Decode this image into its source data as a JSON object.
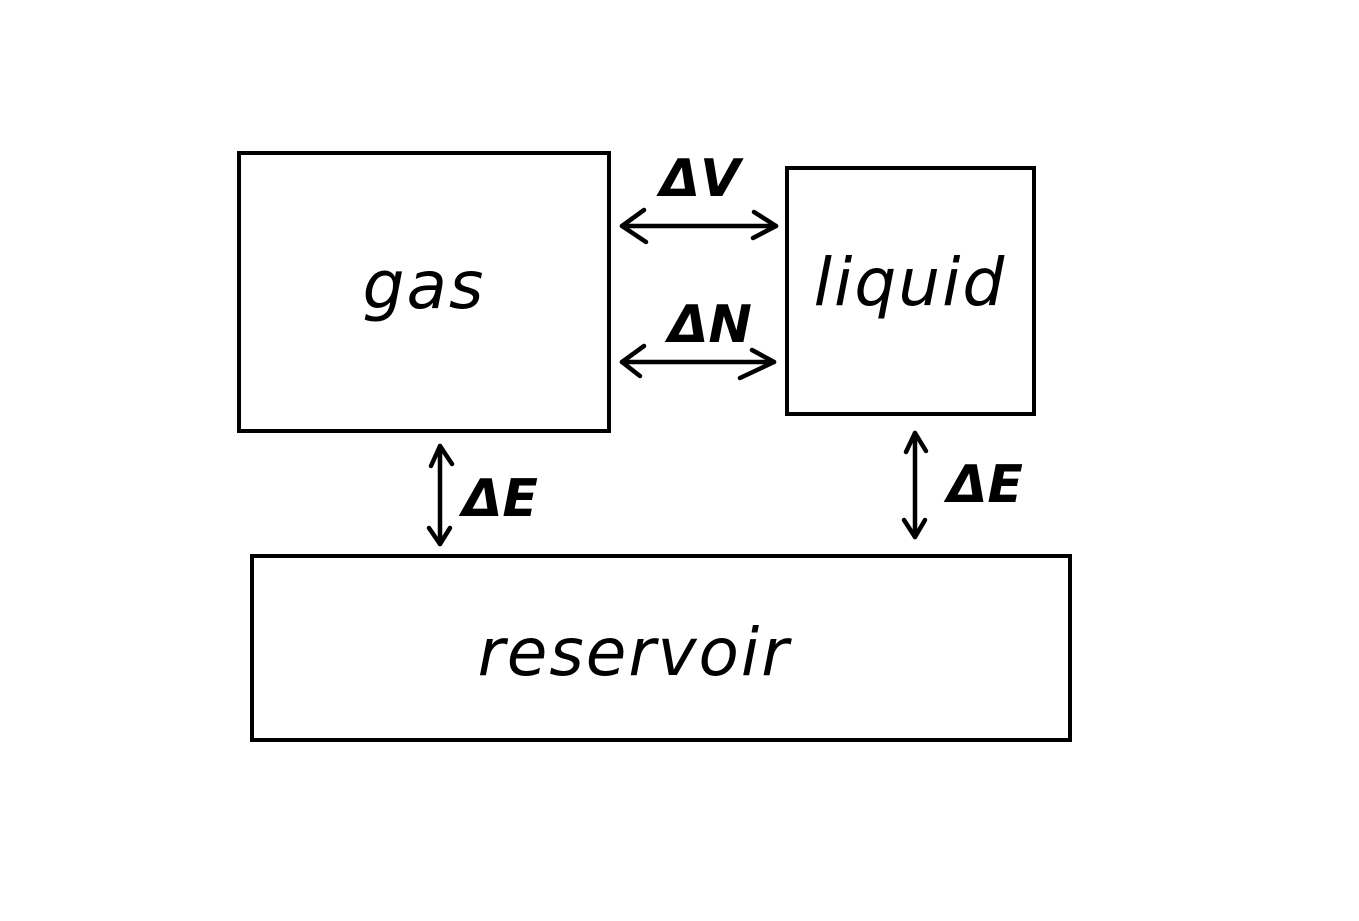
{
  "diagram": {
    "boxes": {
      "gas": "gas",
      "liquid": "liquid",
      "reservoir": "reservoir"
    },
    "arrow_labels": {
      "volume_exchange": "ΔV",
      "particle_exchange": "ΔN",
      "gas_energy_exchange": "ΔE",
      "liquid_energy_exchange": "ΔE"
    },
    "colors": {
      "ink": "#000000",
      "background": "#ffffff"
    }
  }
}
